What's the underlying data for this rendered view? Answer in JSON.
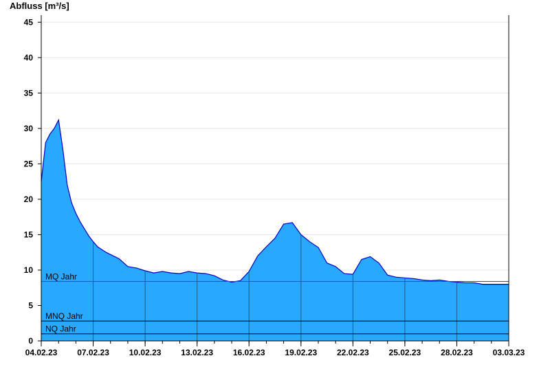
{
  "chart_data": {
    "type": "area",
    "ylabel": "Abfluss [m³/s]",
    "ylim": [
      0,
      46
    ],
    "yticks": [
      0,
      5,
      10,
      15,
      20,
      25,
      30,
      35,
      40,
      45
    ],
    "xlim": [
      "2023-02-04",
      "2023-03-03"
    ],
    "xtick_dates": [
      "2023-02-04",
      "2023-02-07",
      "2023-02-10",
      "2023-02-13",
      "2023-02-16",
      "2023-02-19",
      "2023-02-22",
      "2023-02-25",
      "2023-02-28",
      "2023-03-03"
    ],
    "xtick_labels": [
      "04.02.23",
      "07.02.23",
      "10.02.23",
      "13.02.23",
      "16.02.23",
      "19.02.23",
      "22.02.23",
      "25.02.23",
      "28.02.23",
      "03.03.23"
    ],
    "grid": true,
    "colors": {
      "fill": "#29a8ff",
      "line": "#0000cc",
      "mq": "#008000",
      "ref": "#000000",
      "grid": "#e6e6e6"
    },
    "reference_lines": [
      {
        "label": "MQ Jahr",
        "value": 8.4
      },
      {
        "label": "MNQ Jahr",
        "value": 2.8
      },
      {
        "label": "NQ Jahr",
        "value": 1.0
      }
    ],
    "series": [
      {
        "x": [
          "2023-02-04 00:00",
          "2023-02-04 06:00",
          "2023-02-04 12:00",
          "2023-02-04 18:00",
          "2023-02-05 00:00",
          "2023-02-05 06:00",
          "2023-02-05 12:00",
          "2023-02-05 18:00",
          "2023-02-06 00:00",
          "2023-02-06 06:00",
          "2023-02-06 12:00",
          "2023-02-06 18:00",
          "2023-02-07 00:00",
          "2023-02-07 06:00",
          "2023-02-07 12:00",
          "2023-02-07 18:00",
          "2023-02-08 00:00",
          "2023-02-08 12:00",
          "2023-02-09 00:00",
          "2023-02-09 12:00",
          "2023-02-10 00:00",
          "2023-02-10 12:00",
          "2023-02-11 00:00",
          "2023-02-11 12:00",
          "2023-02-12 00:00",
          "2023-02-12 12:00",
          "2023-02-13 00:00",
          "2023-02-13 12:00",
          "2023-02-14 00:00",
          "2023-02-14 12:00",
          "2023-02-15 00:00",
          "2023-02-15 12:00",
          "2023-02-16 00:00",
          "2023-02-16 12:00",
          "2023-02-17 00:00",
          "2023-02-17 12:00",
          "2023-02-18 00:00",
          "2023-02-18 12:00",
          "2023-02-19 00:00",
          "2023-02-19 12:00",
          "2023-02-20 00:00",
          "2023-02-20 12:00",
          "2023-02-21 00:00",
          "2023-02-21 12:00",
          "2023-02-22 00:00",
          "2023-02-22 12:00",
          "2023-02-23 00:00",
          "2023-02-23 12:00",
          "2023-02-24 00:00",
          "2023-02-24 12:00",
          "2023-02-25 00:00",
          "2023-02-25 12:00",
          "2023-02-26 00:00",
          "2023-02-26 12:00",
          "2023-02-27 00:00",
          "2023-02-27 12:00",
          "2023-02-28 00:00",
          "2023-02-28 12:00",
          "2023-03-01 00:00",
          "2023-03-01 12:00",
          "2023-03-02 00:00",
          "2023-03-02 12:00",
          "2023-03-03 00:00"
        ],
        "values": [
          22.5,
          28.0,
          29.2,
          30.0,
          31.2,
          27.0,
          22.0,
          19.5,
          18.0,
          16.8,
          15.8,
          14.8,
          14.0,
          13.3,
          12.9,
          12.5,
          12.2,
          11.6,
          10.5,
          10.3,
          9.9,
          9.6,
          9.8,
          9.6,
          9.5,
          9.8,
          9.6,
          9.5,
          9.2,
          8.6,
          8.3,
          8.5,
          9.8,
          12.0,
          13.3,
          14.5,
          16.5,
          16.7,
          15.0,
          14.0,
          13.2,
          11.0,
          10.5,
          9.5,
          9.4,
          11.5,
          11.9,
          11.0,
          9.3,
          9.0,
          8.9,
          8.8,
          8.6,
          8.5,
          8.6,
          8.4,
          8.3,
          8.2,
          8.2,
          8.0,
          8.0,
          8.0,
          8.0
        ]
      }
    ]
  }
}
